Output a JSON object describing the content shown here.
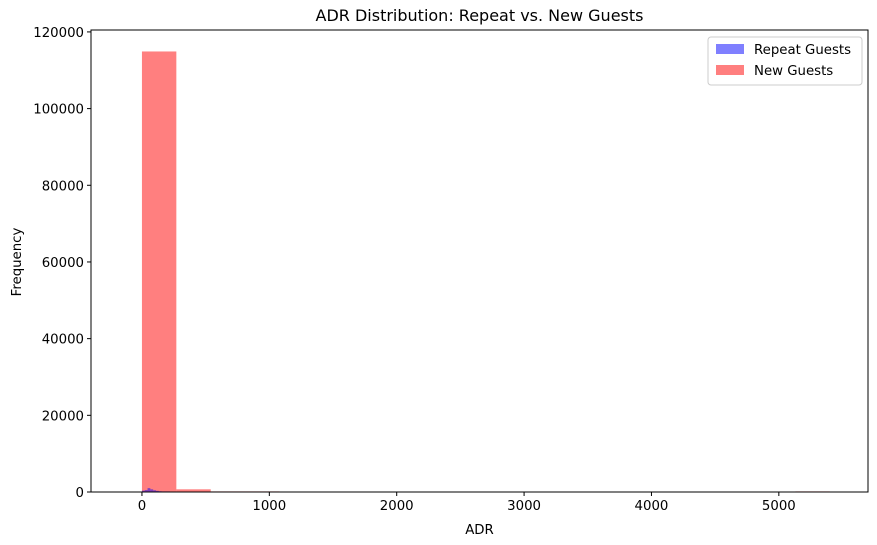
{
  "chart_data": {
    "type": "bar",
    "title": "ADR Distribution: Repeat vs. New Guests",
    "xlabel": "ADR",
    "ylabel": "Frequency",
    "xlim": [
      -400,
      5700
    ],
    "ylim": [
      0,
      120500
    ],
    "x_ticks": [
      0,
      1000,
      2000,
      3000,
      4000,
      5000
    ],
    "y_ticks": [
      0,
      20000,
      40000,
      60000,
      80000,
      100000,
      120000
    ],
    "grid": false,
    "legend_position": "top-right",
    "series": [
      {
        "name": "New Guests",
        "color": "#ff0000",
        "opacity": 0.5,
        "bins": [
          {
            "x0": 0,
            "x1": 270,
            "count": 114900
          },
          {
            "x0": 270,
            "x1": 540,
            "count": 700
          },
          {
            "x0": 540,
            "x1": 810,
            "count": 15
          },
          {
            "x0": 810,
            "x1": 1080,
            "count": 3
          },
          {
            "x0": 5130,
            "x1": 5400,
            "count": 1
          }
        ]
      },
      {
        "name": "Repeat Guests",
        "color": "#0000ff",
        "opacity": 0.5,
        "bins": [
          {
            "x0": 0,
            "x1": 22,
            "count": 350
          },
          {
            "x0": 22,
            "x1": 44,
            "count": 500
          },
          {
            "x0": 44,
            "x1": 66,
            "count": 1000
          },
          {
            "x0": 66,
            "x1": 88,
            "count": 700
          },
          {
            "x0": 88,
            "x1": 110,
            "count": 450
          },
          {
            "x0": 110,
            "x1": 132,
            "count": 300
          },
          {
            "x0": 132,
            "x1": 154,
            "count": 200
          },
          {
            "x0": 154,
            "x1": 176,
            "count": 100
          },
          {
            "x0": 176,
            "x1": 198,
            "count": 60
          },
          {
            "x0": 198,
            "x1": 220,
            "count": 30
          }
        ]
      }
    ],
    "legend": [
      {
        "label": "Repeat Guests",
        "color": "#0000ff",
        "opacity": 0.5
      },
      {
        "label": "New Guests",
        "color": "#ff0000",
        "opacity": 0.5
      }
    ]
  }
}
